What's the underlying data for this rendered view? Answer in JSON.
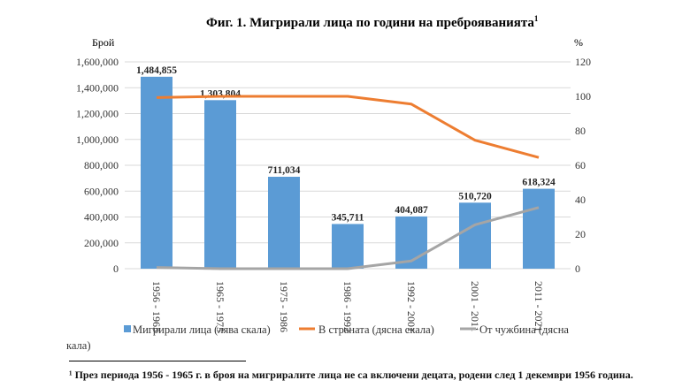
{
  "chart_data": {
    "type": "bar",
    "title": "Фиг. 1. Мигрирали лица по години на преброяванията",
    "title_sup": "1",
    "ylabel": "Брой",
    "y2label": "%",
    "ylim": [
      0,
      1600000
    ],
    "y2lim": [
      0,
      120
    ],
    "yticks": [
      "0",
      "200,000",
      "400,000",
      "600,000",
      "800,000",
      "1,000,000",
      "1,200,000",
      "1,400,000",
      "1,600,000"
    ],
    "y2ticks": [
      "0",
      "20",
      "40",
      "60",
      "80",
      "100",
      "120"
    ],
    "categories": [
      "1956 - 1965",
      "1965 - 1975",
      "1975 - 1986",
      "1986 - 1992",
      "1992 - 2001",
      "2001 - 2011",
      "2011 - 2021"
    ],
    "series": [
      {
        "name": "Мигрирали лица (лява скала)",
        "type": "bar",
        "color": "#5b9bd5",
        "values": [
          1484855,
          1303804,
          711034,
          345711,
          404087,
          510720,
          618324
        ],
        "labels": [
          "1,484,855",
          "1,303,804",
          "711,034",
          "345,711",
          "404,087",
          "510,720",
          "618,324"
        ]
      },
      {
        "name": "В страната (дясна скала)",
        "type": "line",
        "axis": "right",
        "color": "#ed7d31",
        "values": [
          99.3,
          100,
          100,
          100,
          95.5,
          74.5,
          64.5
        ]
      },
      {
        "name": "От чужбина (дясна скала)",
        "type": "line",
        "axis": "right",
        "color": "#a5a5a5",
        "values": [
          0.7,
          0,
          0,
          0,
          4.5,
          25.5,
          35.5
        ]
      }
    ],
    "grid": true,
    "legend": "bottom"
  },
  "footnote": "¹ През периода 1956 - 1965 г. в броя на мигриралите лица не са включени децата, родени след 1 декември 1956 година."
}
